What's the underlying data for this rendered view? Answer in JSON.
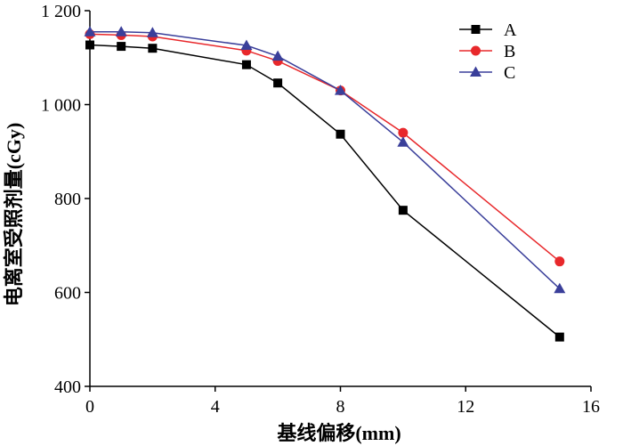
{
  "chart_data": {
    "type": "line",
    "xlabel": "基线偏移(mm)",
    "ylabel": "电离室受照剂量(cGy)",
    "xlim": [
      0,
      16
    ],
    "ylim": [
      400,
      1200
    ],
    "xticks": [
      0,
      4,
      8,
      12,
      16
    ],
    "xtick_labels": [
      "0",
      "4",
      "8",
      "12",
      "16"
    ],
    "yticks": [
      400,
      600,
      800,
      1000,
      1200
    ],
    "ytick_labels": [
      "400",
      "600",
      "800",
      "1 000",
      "1 200"
    ],
    "grid": false,
    "legend_position": "top-right",
    "series": [
      {
        "name": "A",
        "color": "#000000",
        "marker": "square",
        "x": [
          0,
          1,
          2,
          5,
          6,
          8,
          10,
          15
        ],
        "y": [
          1127,
          1124,
          1120,
          1085,
          1046,
          937,
          775,
          505
        ]
      },
      {
        "name": "B",
        "color": "#e8282b",
        "marker": "circle",
        "x": [
          0,
          1,
          2,
          5,
          6,
          8,
          10,
          15
        ],
        "y": [
          1150,
          1148,
          1145,
          1115,
          1093,
          1030,
          940,
          666
        ]
      },
      {
        "name": "C",
        "color": "#3a3f9a",
        "marker": "triangle",
        "x": [
          0,
          1,
          2,
          5,
          6,
          8,
          10,
          15
        ],
        "y": [
          1155,
          1155,
          1153,
          1126,
          1103,
          1030,
          920,
          608
        ]
      }
    ]
  }
}
